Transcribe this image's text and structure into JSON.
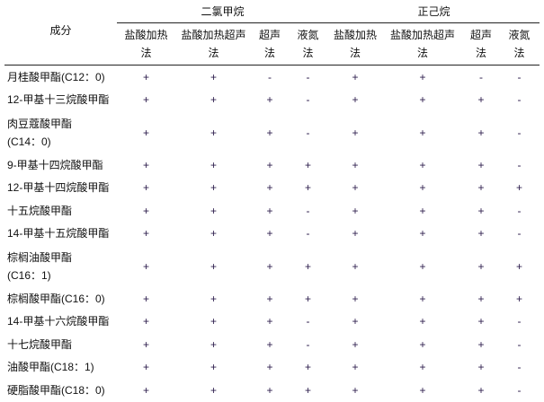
{
  "table": {
    "component_header": "成分",
    "groups": [
      "二氯甲烷",
      "正己烷"
    ],
    "methods": [
      "盐酸加热\n法",
      "盐酸加热超声\n法",
      "超声\n法",
      "液氮\n法"
    ],
    "rows": [
      {
        "name": "月桂酸甲酯(C12：0)",
        "values": [
          "+",
          "+",
          "-",
          "-",
          "+",
          "+",
          "-",
          "-"
        ]
      },
      {
        "name": "12-甲基十三烷酸甲酯",
        "values": [
          "+",
          "+",
          "+",
          "-",
          "+",
          "+",
          "+",
          "-"
        ]
      },
      {
        "name": "肉豆蔻酸甲酯\n(C14：0)",
        "values": [
          "+",
          "+",
          "+",
          "-",
          "+",
          "+",
          "+",
          "-"
        ]
      },
      {
        "name": "9-甲基十四烷酸甲酯",
        "values": [
          "+",
          "+",
          "+",
          "+",
          "+",
          "+",
          "+",
          "-"
        ]
      },
      {
        "name": "12-甲基十四烷酸甲酯",
        "values": [
          "+",
          "+",
          "+",
          "+",
          "+",
          "+",
          "+",
          "+"
        ]
      },
      {
        "name": "十五烷酸甲酯",
        "values": [
          "+",
          "+",
          "+",
          "-",
          "+",
          "+",
          "+",
          "-"
        ]
      },
      {
        "name": "14-甲基十五烷酸甲酯",
        "values": [
          "+",
          "+",
          "+",
          "-",
          "+",
          "+",
          "+",
          "-"
        ]
      },
      {
        "name": "棕榈油酸甲酯\n(C16：1)",
        "values": [
          "+",
          "+",
          "+",
          "+",
          "+",
          "+",
          "+",
          "+"
        ]
      },
      {
        "name": "棕榈酸甲酯(C16：0)",
        "values": [
          "+",
          "+",
          "+",
          "+",
          "+",
          "+",
          "+",
          "+"
        ]
      },
      {
        "name": "14-甲基十六烷酸甲酯",
        "values": [
          "+",
          "+",
          "+",
          "-",
          "+",
          "+",
          "+",
          "-"
        ]
      },
      {
        "name": "十七烷酸甲酯",
        "values": [
          "+",
          "+",
          "+",
          "-",
          "+",
          "+",
          "+",
          "-"
        ]
      },
      {
        "name": "油酸甲酯(C18：1)",
        "values": [
          "+",
          "+",
          "+",
          "+",
          "+",
          "+",
          "+",
          "-"
        ]
      },
      {
        "name": "硬脂酸甲酯(C18：0)",
        "values": [
          "+",
          "+",
          "+",
          "+",
          "+",
          "+",
          "+",
          "-"
        ]
      }
    ]
  }
}
